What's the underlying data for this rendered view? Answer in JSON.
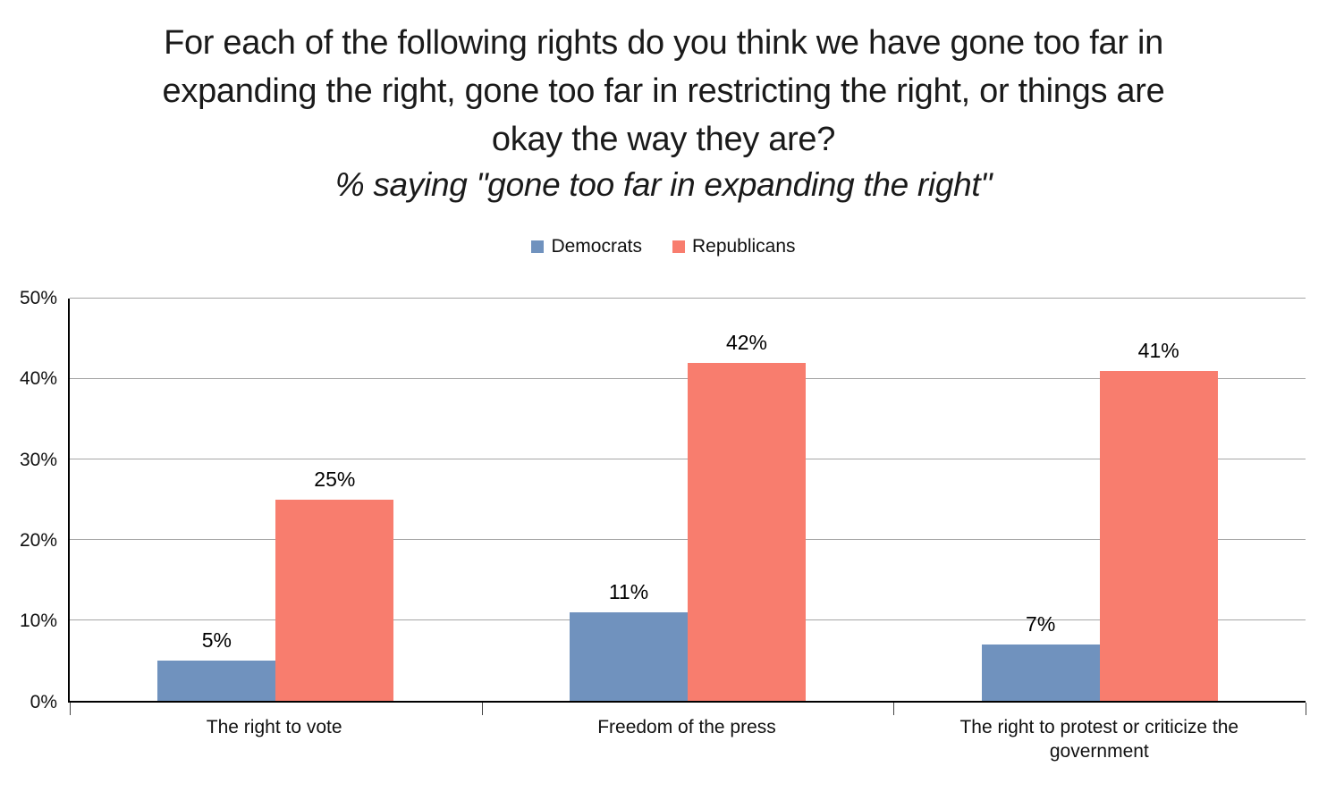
{
  "chart_data": {
    "type": "bar",
    "title": "For each of the following rights do you think we have gone too far in expanding the right, gone too far in restricting the right, or things are okay the way they are?",
    "subtitle": "% saying \"gone too far in expanding the right\"",
    "categories": [
      "The right to vote",
      "Freedom of the press",
      "The right to protest or criticize the government"
    ],
    "series": [
      {
        "name": "Democrats",
        "color": "#7092be",
        "values": [
          5,
          11,
          7
        ]
      },
      {
        "name": "Republicans",
        "color": "#f87d6e",
        "values": [
          25,
          42,
          41
        ]
      }
    ],
    "value_suffix": "%",
    "ylim": [
      0,
      50
    ],
    "ytick_step": 10,
    "ytick_labels": [
      "0%",
      "10%",
      "20%",
      "30%",
      "40%",
      "50%"
    ],
    "grid": true,
    "legend_position": "top",
    "colors": {
      "gridline": "#a6a6a6",
      "axis": "#000000",
      "text": "#1a1a1a"
    }
  }
}
